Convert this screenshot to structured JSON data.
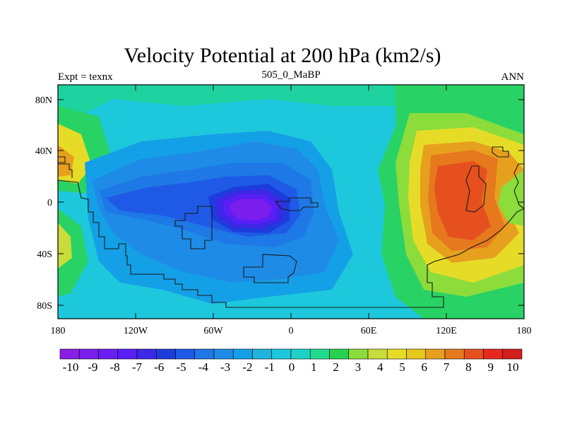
{
  "title": "Velocity Potential at 200 hPa (km2/s)",
  "subtitle_left": "Expt = texnx",
  "subtitle_center": "505_0_MaBP",
  "subtitle_right": "ANN",
  "y_ticks": [
    "80N",
    "40N",
    "0",
    "40S",
    "80S"
  ],
  "x_ticks": [
    "180",
    "120W",
    "60W",
    "0",
    "60E",
    "120E",
    "180"
  ],
  "colorbar_labels": [
    "-10",
    "-9",
    "-8",
    "-7",
    "-6",
    "-5",
    "-4",
    "-3",
    "-2",
    "-1",
    "0",
    "1",
    "2",
    "3",
    "4",
    "5",
    "6",
    "7",
    "8",
    "9",
    "10"
  ],
  "colorbar_colors": [
    "#8a1ee6",
    "#7a1eee",
    "#6a1ef2",
    "#5a1ef6",
    "#3c28e6",
    "#1e3cdc",
    "#1e5ae6",
    "#1e78e6",
    "#1e8ce6",
    "#14a0e6",
    "#1eb4dc",
    "#1ec8dc",
    "#1ed2c8",
    "#1edc8c",
    "#28d250",
    "#8cdc3c",
    "#c8dc3c",
    "#e6dc28",
    "#e6c81e",
    "#e6a01e",
    "#e6781e",
    "#e6501e",
    "#e6281e",
    "#d21e1e"
  ],
  "colors": {
    "background": "#1ec8dc",
    "land_outline": "#1a1a1a"
  }
}
